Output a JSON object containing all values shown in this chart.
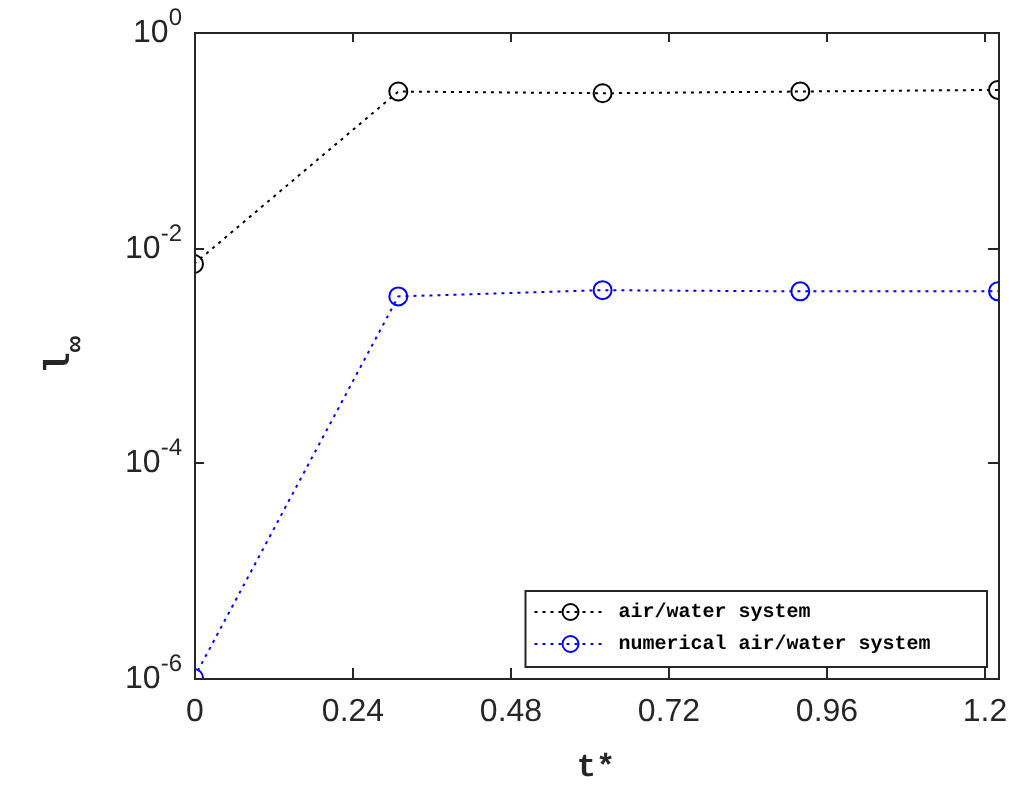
{
  "chart_data": {
    "type": "line",
    "xlabel": "t*",
    "ylabel": "l$_{∞}$",
    "x": [
      0,
      0.31,
      0.62,
      0.92,
      1.22
    ],
    "series": [
      {
        "name": "air/water system",
        "color": "#000000",
        "values": [
          0.007,
          0.28,
          0.27,
          0.28,
          0.29
        ]
      },
      {
        "name": "numerical air/water system",
        "color": "#0000ff",
        "values": [
          1e-06,
          0.0035,
          0.004,
          0.0039,
          0.0039
        ]
      }
    ],
    "xlim": [
      0,
      1.22
    ],
    "xticks": [
      0,
      0.24,
      0.48,
      0.72,
      0.96,
      1.2
    ],
    "ylim": [
      1e-06,
      1
    ],
    "yticks": [
      {
        "value": 1e-06,
        "label": "10$^{-6}$"
      },
      {
        "value": 0.0001,
        "label": "10$^{-4}$"
      },
      {
        "value": 0.01,
        "label": "10$^{-2}$"
      },
      {
        "value": 1,
        "label": "10$^{0}$"
      }
    ],
    "log": "y",
    "grid": false,
    "legend": "bottom right",
    "marker": "circle",
    "line_style": "dotted"
  }
}
